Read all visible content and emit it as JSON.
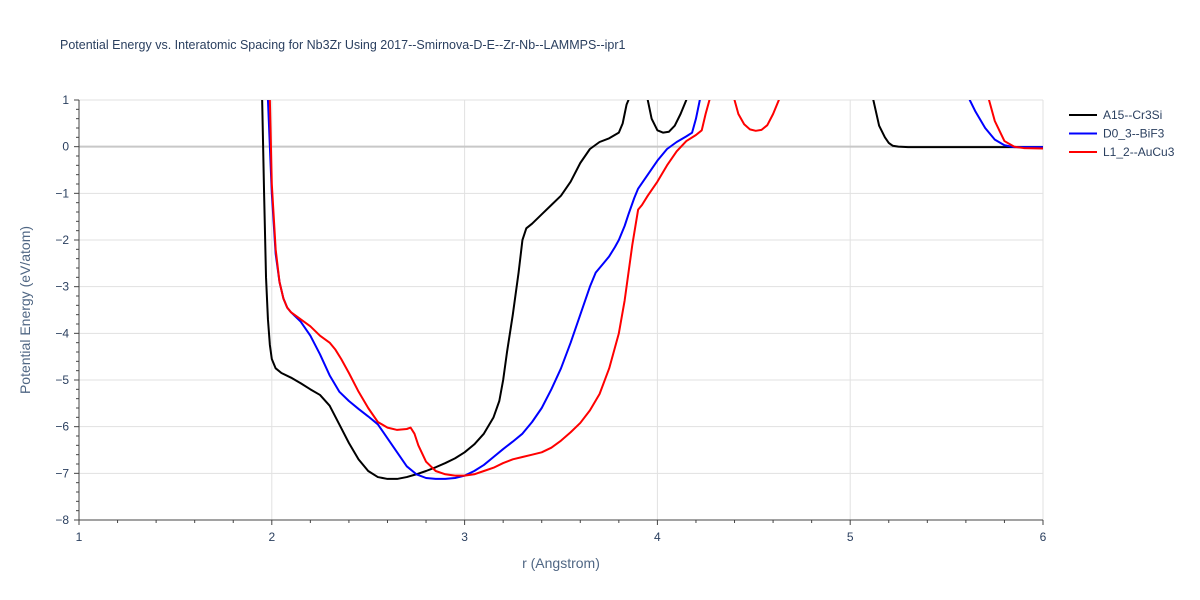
{
  "chart_data": {
    "type": "line",
    "title": "Potential Energy vs. Interatomic Spacing for Nb3Zr Using 2017--Smirnova-D-E--Zr-Nb--LAMMPS--ipr1",
    "xlabel": "r (Angstrom)",
    "ylabel": "Potential Energy (eV/atom)",
    "xlim": [
      1,
      6
    ],
    "ylim": [
      -8,
      1
    ],
    "xticks": [
      1,
      2,
      3,
      4,
      5,
      6
    ],
    "yticks": [
      -8,
      -7,
      -6,
      -5,
      -4,
      -3,
      -2,
      -1,
      0,
      1
    ],
    "grid": true,
    "legend_position": "top-right",
    "series": [
      {
        "name": "A15--Cr3Si",
        "color": "#000000",
        "x": [
          1.95,
          1.96,
          1.97,
          1.98,
          1.99,
          2.0,
          2.02,
          2.05,
          2.1,
          2.15,
          2.2,
          2.25,
          2.3,
          2.35,
          2.4,
          2.45,
          2.5,
          2.55,
          2.6,
          2.65,
          2.7,
          2.75,
          2.8,
          2.85,
          2.9,
          2.95,
          3.0,
          3.05,
          3.1,
          3.15,
          3.18,
          3.2,
          3.22,
          3.25,
          3.28,
          3.3,
          3.32,
          3.35,
          3.4,
          3.45,
          3.5,
          3.55,
          3.6,
          3.65,
          3.7,
          3.75,
          3.8,
          3.82,
          3.83,
          3.84,
          3.85
        ],
        "y": [
          1.0,
          -1.0,
          -2.8,
          -3.7,
          -4.25,
          -4.55,
          -4.75,
          -4.85,
          -4.95,
          -5.07,
          -5.2,
          -5.32,
          -5.55,
          -5.95,
          -6.35,
          -6.7,
          -6.95,
          -7.08,
          -7.12,
          -7.12,
          -7.08,
          -7.02,
          -6.95,
          -6.87,
          -6.78,
          -6.68,
          -6.55,
          -6.38,
          -6.15,
          -5.8,
          -5.45,
          -5.0,
          -4.4,
          -3.6,
          -2.7,
          -2.0,
          -1.75,
          -1.65,
          -1.45,
          -1.25,
          -1.05,
          -0.75,
          -0.35,
          -0.05,
          0.1,
          0.18,
          0.3,
          0.5,
          0.7,
          0.9,
          1.0
        ]
      },
      {
        "name": "A15--Cr3Si",
        "color": "#000000",
        "x": [
          3.95,
          3.97,
          4.0,
          4.03,
          4.06,
          4.09,
          4.12,
          4.15
        ],
        "y": [
          1.0,
          0.6,
          0.35,
          0.3,
          0.32,
          0.45,
          0.7,
          1.0
        ]
      },
      {
        "name": "A15--Cr3Si",
        "color": "#000000",
        "x": [
          5.12,
          5.15,
          5.18,
          5.2,
          5.22,
          5.25,
          5.3,
          5.4,
          5.5,
          5.6,
          5.7,
          5.8,
          5.9,
          6.0
        ],
        "y": [
          1.0,
          0.45,
          0.2,
          0.08,
          0.02,
          0.0,
          -0.01,
          -0.01,
          -0.01,
          -0.01,
          -0.01,
          -0.01,
          -0.01,
          -0.01
        ]
      },
      {
        "name": "D0_3--BiF3",
        "color": "#0000ff",
        "x": [
          1.98,
          2.0,
          2.02,
          2.04,
          2.06,
          2.08,
          2.1,
          2.15,
          2.2,
          2.25,
          2.3,
          2.35,
          2.4,
          2.45,
          2.5,
          2.55,
          2.6,
          2.65,
          2.7,
          2.75,
          2.8,
          2.85,
          2.9,
          2.95,
          3.0,
          3.05,
          3.1,
          3.15,
          3.2,
          3.25,
          3.3,
          3.35,
          3.4,
          3.45,
          3.5,
          3.55,
          3.6,
          3.65,
          3.68,
          3.7,
          3.72,
          3.75,
          3.78,
          3.8,
          3.83,
          3.85,
          3.88,
          3.9,
          3.95,
          4.0,
          4.05,
          4.1,
          4.15,
          4.18,
          4.2,
          4.22
        ],
        "y": [
          1.0,
          -1.0,
          -2.3,
          -2.9,
          -3.25,
          -3.45,
          -3.55,
          -3.75,
          -4.05,
          -4.45,
          -4.9,
          -5.25,
          -5.45,
          -5.62,
          -5.78,
          -5.95,
          -6.25,
          -6.55,
          -6.85,
          -7.02,
          -7.1,
          -7.12,
          -7.12,
          -7.1,
          -7.05,
          -6.95,
          -6.82,
          -6.65,
          -6.48,
          -6.32,
          -6.15,
          -5.9,
          -5.6,
          -5.2,
          -4.75,
          -4.2,
          -3.6,
          -3.0,
          -2.7,
          -2.6,
          -2.5,
          -2.35,
          -2.15,
          -2.0,
          -1.7,
          -1.45,
          -1.1,
          -0.9,
          -0.6,
          -0.3,
          -0.05,
          0.1,
          0.22,
          0.3,
          0.6,
          1.0
        ]
      },
      {
        "name": "D0_3--BiF3",
        "color": "#0000ff",
        "x": [
          5.62,
          5.65,
          5.7,
          5.75,
          5.8,
          5.85,
          5.9,
          6.0
        ],
        "y": [
          1.0,
          0.75,
          0.4,
          0.15,
          0.03,
          -0.01,
          -0.01,
          -0.01
        ]
      },
      {
        "name": "L1_2--AuCu3",
        "color": "#ff0000",
        "x": [
          1.99,
          2.0,
          2.02,
          2.04,
          2.06,
          2.08,
          2.1,
          2.15,
          2.2,
          2.25,
          2.3,
          2.33,
          2.36,
          2.4,
          2.45,
          2.5,
          2.55,
          2.6,
          2.65,
          2.7,
          2.72,
          2.74,
          2.76,
          2.8,
          2.85,
          2.9,
          2.95,
          3.0,
          3.05,
          3.1,
          3.15,
          3.2,
          3.25,
          3.3,
          3.35,
          3.4,
          3.45,
          3.5,
          3.55,
          3.6,
          3.65,
          3.7,
          3.75,
          3.8,
          3.83,
          3.85,
          3.87,
          3.89,
          3.9,
          3.92,
          3.95,
          4.0,
          4.05,
          4.1,
          4.15,
          4.2,
          4.23,
          4.25,
          4.27
        ],
        "y": [
          1.0,
          -0.8,
          -2.2,
          -2.9,
          -3.25,
          -3.45,
          -3.55,
          -3.7,
          -3.85,
          -4.05,
          -4.2,
          -4.35,
          -4.55,
          -4.85,
          -5.25,
          -5.6,
          -5.9,
          -6.02,
          -6.07,
          -6.05,
          -6.02,
          -6.15,
          -6.4,
          -6.75,
          -6.95,
          -7.02,
          -7.05,
          -7.05,
          -7.02,
          -6.95,
          -6.88,
          -6.78,
          -6.7,
          -6.65,
          -6.6,
          -6.55,
          -6.45,
          -6.3,
          -6.12,
          -5.92,
          -5.65,
          -5.3,
          -4.75,
          -4.0,
          -3.3,
          -2.7,
          -2.1,
          -1.6,
          -1.35,
          -1.25,
          -1.05,
          -0.75,
          -0.4,
          -0.1,
          0.12,
          0.25,
          0.35,
          0.7,
          1.0
        ]
      },
      {
        "name": "L1_2--AuCu3",
        "color": "#ff0000",
        "x": [
          4.4,
          4.42,
          4.45,
          4.48,
          4.51,
          4.54,
          4.57,
          4.6,
          4.63
        ],
        "y": [
          1.0,
          0.7,
          0.48,
          0.37,
          0.34,
          0.36,
          0.46,
          0.7,
          1.0
        ]
      },
      {
        "name": "L1_2--AuCu3",
        "color": "#ff0000",
        "x": [
          5.72,
          5.75,
          5.8,
          5.85,
          5.9,
          6.0
        ],
        "y": [
          1.0,
          0.55,
          0.12,
          0.0,
          -0.03,
          -0.04
        ]
      }
    ],
    "legend": [
      {
        "name": "A15--Cr3Si",
        "color": "#000000"
      },
      {
        "name": "D0_3--BiF3",
        "color": "#0000ff"
      },
      {
        "name": "L1_2--AuCu3",
        "color": "#ff0000"
      }
    ]
  }
}
